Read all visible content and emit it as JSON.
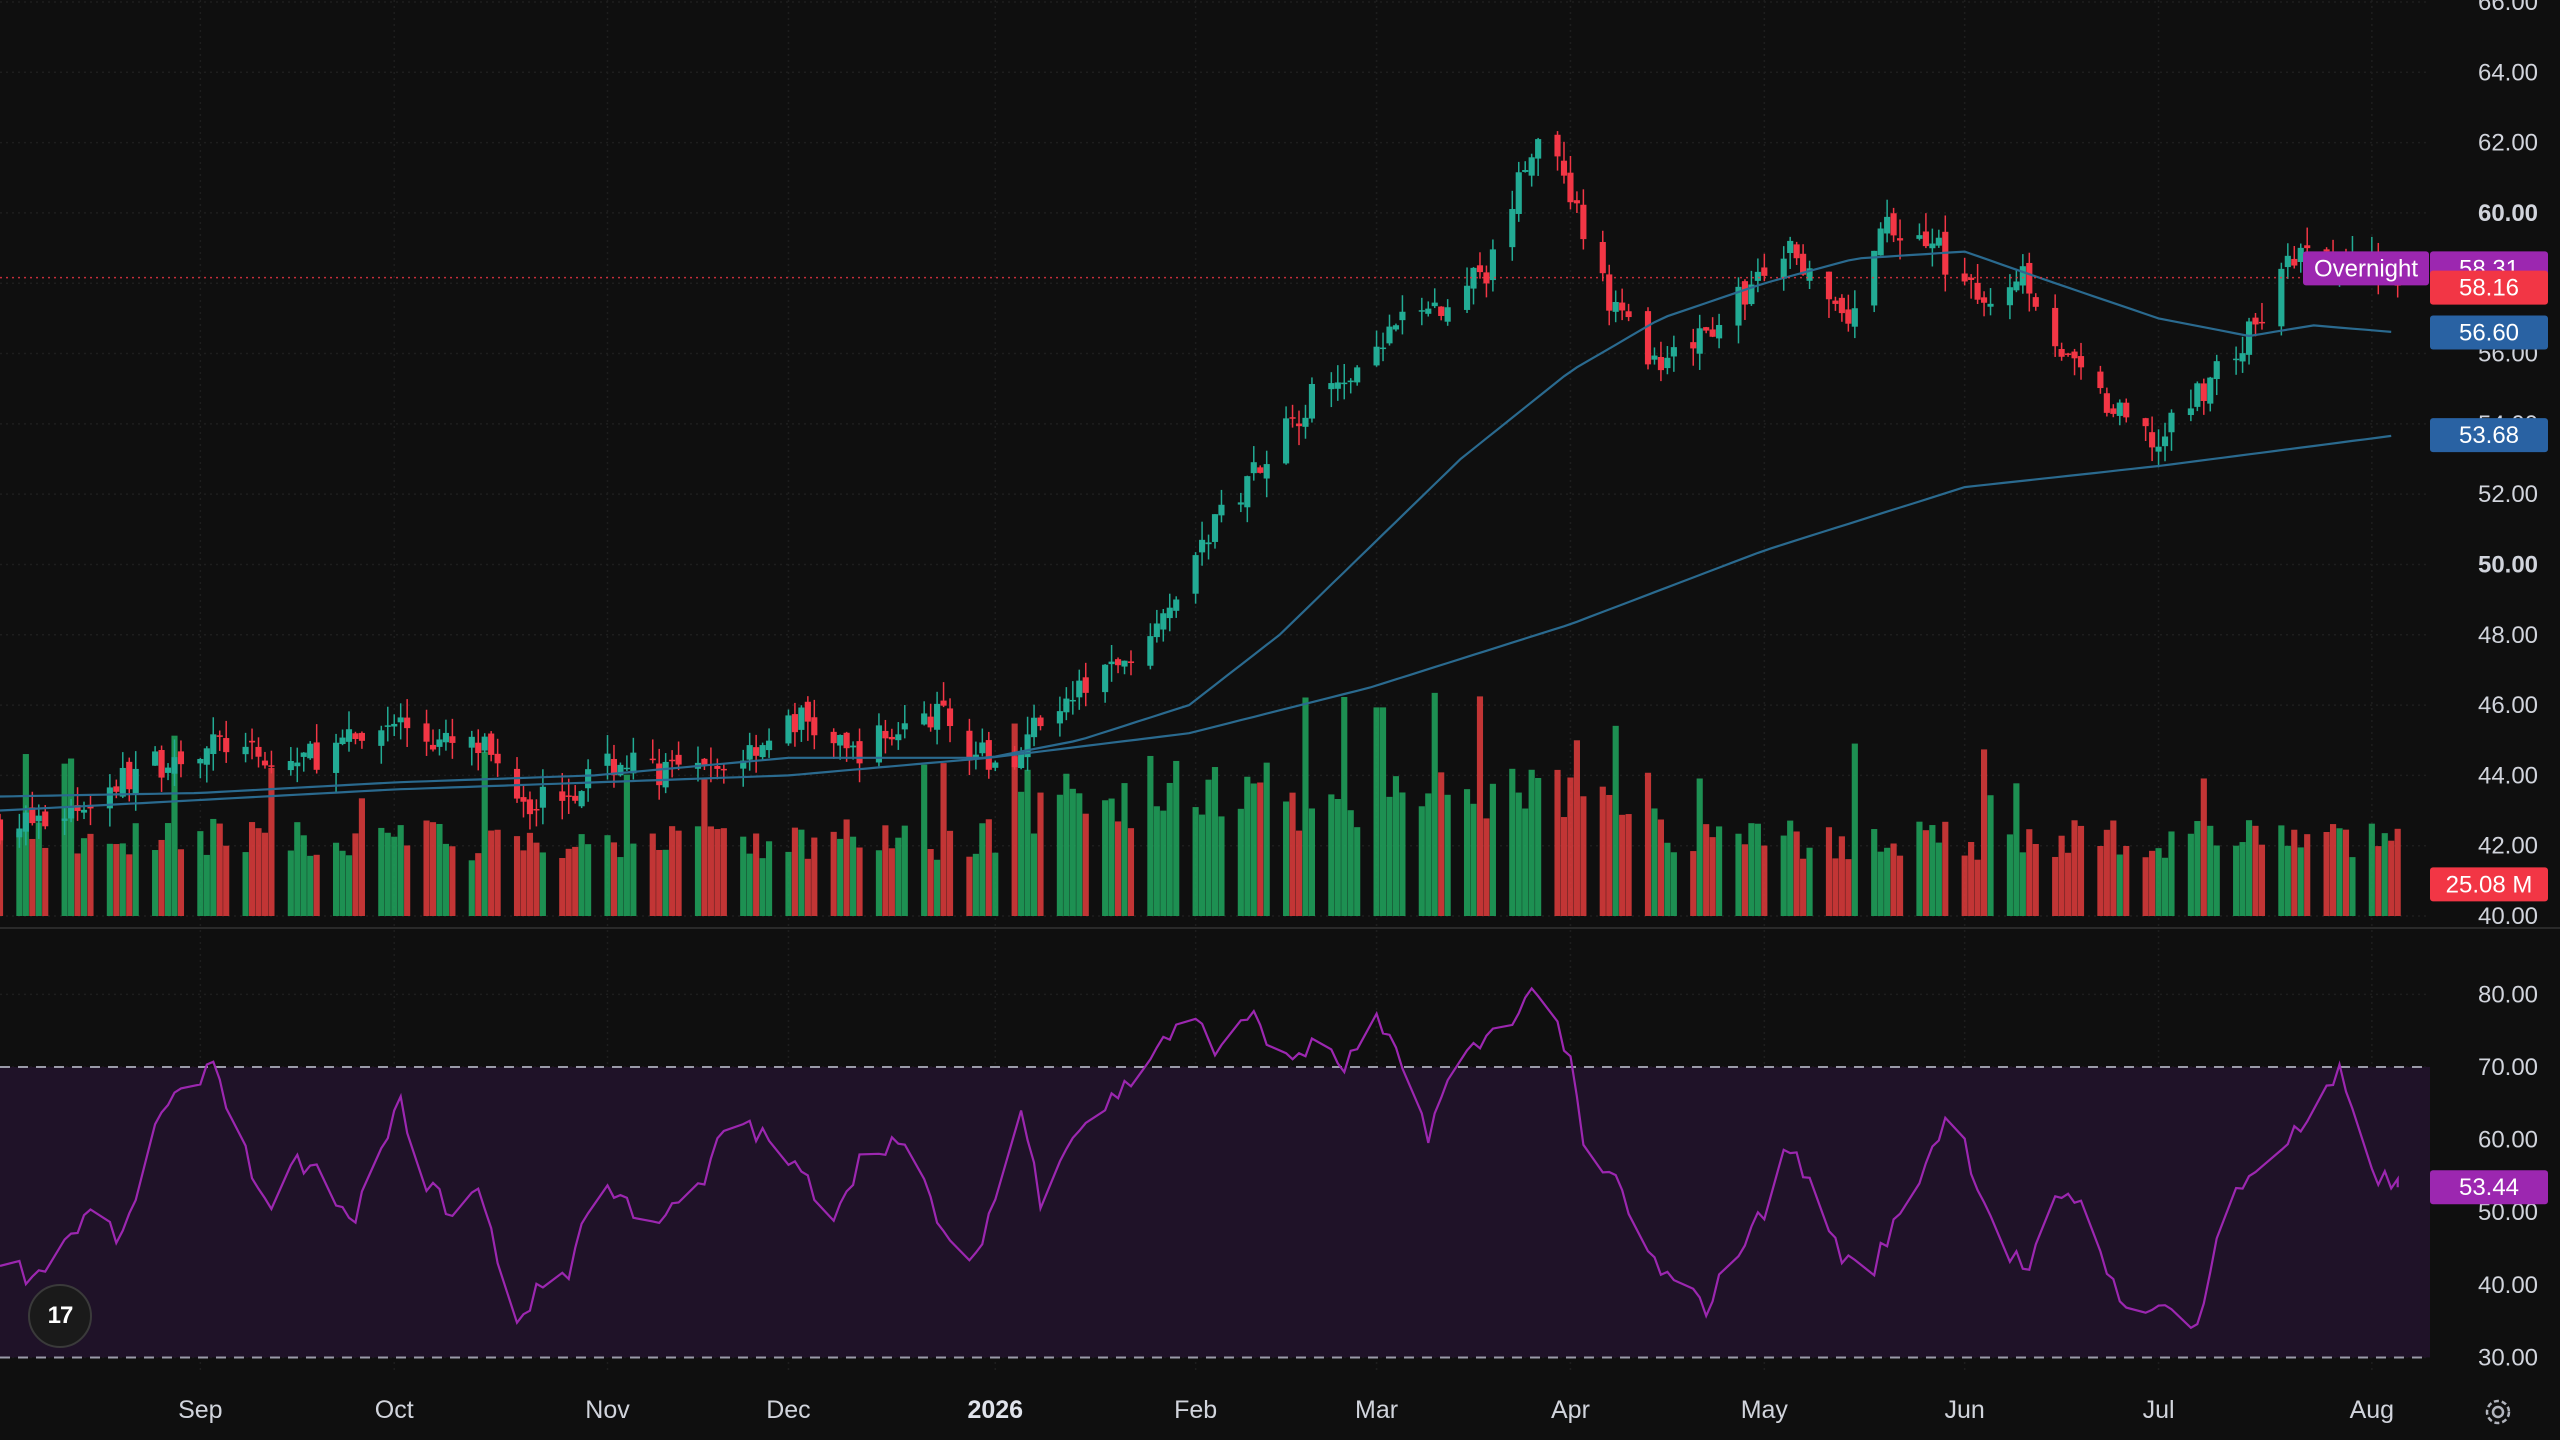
{
  "chart_data": [
    {
      "type": "candlestick",
      "title": "",
      "ylim": [
        40,
        66
      ],
      "y_ticks": [
        "40.00",
        "42.00",
        "44.00",
        "46.00",
        "48.00",
        "50.00",
        "52.00",
        "54.00",
        "56.00",
        "58.00",
        "60.00",
        "62.00",
        "64.00",
        "66.00"
      ],
      "bold_ticks": [
        "50.00",
        "60.00"
      ],
      "x_ticks": [
        {
          "label": "Sep",
          "date": "2025-09-01"
        },
        {
          "label": "Oct",
          "date": "2025-10-01"
        },
        {
          "label": "Nov",
          "date": "2025-11-03"
        },
        {
          "label": "Dec",
          "date": "2025-12-01"
        },
        {
          "label": "2026",
          "date": "2026-01-02",
          "bold": true
        },
        {
          "label": "Feb",
          "date": "2026-02-02"
        },
        {
          "label": "Mar",
          "date": "2026-03-02"
        },
        {
          "label": "Apr",
          "date": "2026-04-01"
        },
        {
          "label": "May",
          "date": "2026-05-01"
        },
        {
          "label": "Jun",
          "date": "2026-06-01"
        },
        {
          "label": "Jul",
          "date": "2026-07-01"
        },
        {
          "label": "Aug",
          "date": "2026-08-03"
        }
      ],
      "close_path": [
        [
          "2025-08-01",
          42.6
        ],
        [
          "2025-08-08",
          42.7
        ],
        [
          "2025-08-15",
          43.3
        ],
        [
          "2025-08-22",
          44.1
        ],
        [
          "2025-08-29",
          44.6
        ],
        [
          "2025-09-05",
          44.9
        ],
        [
          "2025-09-12",
          44.2
        ],
        [
          "2025-09-19",
          44.6
        ],
        [
          "2025-09-26",
          45.0
        ],
        [
          "2025-10-01",
          45.6
        ],
        [
          "2025-10-08",
          44.9
        ],
        [
          "2025-10-15",
          44.7
        ],
        [
          "2025-10-22",
          43.3
        ],
        [
          "2025-10-29",
          43.7
        ],
        [
          "2025-11-05",
          44.4
        ],
        [
          "2025-11-12",
          44.1
        ],
        [
          "2025-11-19",
          44.0
        ],
        [
          "2025-11-26",
          44.9
        ],
        [
          "2025-12-03",
          45.6
        ],
        [
          "2025-12-10",
          44.6
        ],
        [
          "2025-12-17",
          45.2
        ],
        [
          "2025-12-24",
          45.8
        ],
        [
          "2026-01-01",
          44.3
        ],
        [
          "2026-01-06",
          44.4
        ],
        [
          "2026-01-09",
          45.8
        ],
        [
          "2026-01-16",
          46.4
        ],
        [
          "2026-01-23",
          47.6
        ],
        [
          "2026-01-30",
          49.4
        ],
        [
          "2026-02-06",
          51.4
        ],
        [
          "2026-02-13",
          53.3
        ],
        [
          "2026-02-20",
          54.8
        ],
        [
          "2026-02-27",
          55.3
        ],
        [
          "2026-03-06",
          56.9
        ],
        [
          "2026-03-13",
          57.2
        ],
        [
          "2026-03-20",
          58.6
        ],
        [
          "2026-03-27",
          62.5
        ],
        [
          "2026-04-01",
          60.3
        ],
        [
          "2026-04-08",
          57.1
        ],
        [
          "2026-04-15",
          55.4
        ],
        [
          "2026-04-22",
          56.6
        ],
        [
          "2026-04-29",
          57.9
        ],
        [
          "2026-05-06",
          59.0
        ],
        [
          "2026-05-13",
          56.7
        ],
        [
          "2026-05-20",
          59.6
        ],
        [
          "2026-05-27",
          59.2
        ],
        [
          "2026-06-03",
          57.4
        ],
        [
          "2026-06-10",
          58.4
        ],
        [
          "2026-06-17",
          55.7
        ],
        [
          "2026-06-24",
          54.3
        ],
        [
          "2026-07-01",
          53.4
        ],
        [
          "2026-07-08",
          55.1
        ],
        [
          "2026-07-15",
          56.5
        ],
        [
          "2026-07-22",
          58.8
        ],
        [
          "2026-07-29",
          58.4
        ],
        [
          "2026-08-03",
          58.6
        ],
        [
          "2026-08-07",
          58.16
        ]
      ],
      "series": [
        {
          "name": "",
          "color": "#2a6a8f",
          "points": [
            [
              "2025-08-01",
              43.4
            ],
            [
              "2025-09-01",
              43.5
            ],
            [
              "2025-10-01",
              43.8
            ],
            [
              "2025-11-01",
              44.0
            ],
            [
              "2025-12-01",
              44.5
            ],
            [
              "2026-01-01",
              44.5
            ],
            [
              "2026-01-15",
              45.0
            ],
            [
              "2026-02-01",
              46.0
            ],
            [
              "2026-02-15",
              48.0
            ],
            [
              "2026-03-01",
              50.5
            ],
            [
              "2026-03-15",
              53.0
            ],
            [
              "2026-04-01",
              55.5
            ],
            [
              "2026-04-15",
              57.0
            ],
            [
              "2026-05-01",
              58.0
            ],
            [
              "2026-05-15",
              58.7
            ],
            [
              "2026-06-01",
              58.9
            ],
            [
              "2026-06-15",
              58.0
            ],
            [
              "2026-07-01",
              57.0
            ],
            [
              "2026-07-15",
              56.5
            ],
            [
              "2026-07-25",
              56.8
            ],
            [
              "2026-08-07",
              56.6
            ]
          ]
        },
        {
          "name": "",
          "color": "#2a6a8f",
          "points": [
            [
              "2025-08-01",
              43.0
            ],
            [
              "2025-09-01",
              43.3
            ],
            [
              "2025-10-01",
              43.6
            ],
            [
              "2025-11-01",
              43.8
            ],
            [
              "2025-12-01",
              44.0
            ],
            [
              "2026-01-01",
              44.5
            ],
            [
              "2026-02-01",
              45.2
            ],
            [
              "2026-03-01",
              46.5
            ],
            [
              "2026-04-01",
              48.3
            ],
            [
              "2026-05-01",
              50.4
            ],
            [
              "2026-06-01",
              52.2
            ],
            [
              "2026-07-01",
              52.8
            ],
            [
              "2026-08-07",
              53.68
            ]
          ]
        }
      ],
      "volume_scale_max": 65,
      "volume_last": 25.08,
      "volume_unit": "M",
      "price_lines": [
        {
          "label": "Overnight",
          "value": "58.31",
          "price": 58.31,
          "color": "#9c27b0"
        },
        {
          "value": "58.16",
          "price": 58.16,
          "color": "#f23645",
          "dotted": true
        },
        {
          "value": "56.60",
          "price": 56.6,
          "color": "#2962a3"
        },
        {
          "value": "53.68",
          "price": 53.68,
          "color": "#2962a3"
        }
      ],
      "volume_badge": {
        "value": "25.08 M",
        "color": "#f23645"
      },
      "up_color": "#22ab94",
      "down_color": "#f23645"
    },
    {
      "type": "line",
      "title": "",
      "ylim": [
        28,
        85
      ],
      "y_ticks": [
        "30.00",
        "40.00",
        "50.00",
        "60.00",
        "70.00",
        "80.00"
      ],
      "band": [
        30,
        70
      ],
      "color": "#9c27b0",
      "last_value": "53.44",
      "points": [
        [
          "2025-08-01",
          44
        ],
        [
          "2025-08-06",
          41
        ],
        [
          "2025-08-11",
          46
        ],
        [
          "2025-08-15",
          50
        ],
        [
          "2025-08-20",
          46
        ],
        [
          "2025-08-25",
          62
        ],
        [
          "2025-08-29",
          66
        ],
        [
          "2025-09-03",
          71
        ],
        [
          "2025-09-08",
          58
        ],
        [
          "2025-09-12",
          49
        ],
        [
          "2025-09-16",
          57
        ],
        [
          "2025-09-20",
          55
        ],
        [
          "2025-09-24",
          48
        ],
        [
          "2025-09-29",
          58
        ],
        [
          "2025-10-02",
          65
        ],
        [
          "2025-10-06",
          54
        ],
        [
          "2025-10-10",
          50
        ],
        [
          "2025-10-14",
          53
        ],
        [
          "2025-10-20",
          35
        ],
        [
          "2025-10-24",
          40
        ],
        [
          "2025-10-28",
          42
        ],
        [
          "2025-11-01",
          54
        ],
        [
          "2025-11-05",
          52
        ],
        [
          "2025-11-09",
          49
        ],
        [
          "2025-11-13",
          50
        ],
        [
          "2025-11-18",
          54
        ],
        [
          "2025-11-22",
          64
        ],
        [
          "2025-11-26",
          61
        ],
        [
          "2025-11-30",
          58
        ],
        [
          "2025-12-04",
          54
        ],
        [
          "2025-12-08",
          50
        ],
        [
          "2025-12-12",
          57
        ],
        [
          "2025-12-17",
          60
        ],
        [
          "2025-12-21",
          56
        ],
        [
          "2025-12-26",
          45
        ],
        [
          "2025-12-29",
          42
        ],
        [
          "2026-01-02",
          52
        ],
        [
          "2026-01-06",
          64
        ],
        [
          "2026-01-09",
          52
        ],
        [
          "2026-01-13",
          60
        ],
        [
          "2026-01-18",
          64
        ],
        [
          "2026-01-23",
          68
        ],
        [
          "2026-01-28",
          74
        ],
        [
          "2026-02-02",
          76
        ],
        [
          "2026-02-06",
          72
        ],
        [
          "2026-02-11",
          78
        ],
        [
          "2026-02-15",
          70
        ],
        [
          "2026-02-20",
          73
        ],
        [
          "2026-02-25",
          70
        ],
        [
          "2026-03-02",
          76
        ],
        [
          "2026-03-06",
          70
        ],
        [
          "2026-03-10",
          61
        ],
        [
          "2026-03-14",
          70
        ],
        [
          "2026-03-19",
          74
        ],
        [
          "2026-03-24",
          78
        ],
        [
          "2026-03-28",
          82
        ],
        [
          "2026-04-01",
          70
        ],
        [
          "2026-04-04",
          54
        ],
        [
          "2026-04-08",
          55
        ],
        [
          "2026-04-12",
          45
        ],
        [
          "2026-04-17",
          40
        ],
        [
          "2026-04-22",
          37
        ],
        [
          "2026-04-27",
          45
        ],
        [
          "2026-05-01",
          50
        ],
        [
          "2026-05-04",
          60
        ],
        [
          "2026-05-08",
          54
        ],
        [
          "2026-05-13",
          44
        ],
        [
          "2026-05-17",
          41
        ],
        [
          "2026-05-21",
          48
        ],
        [
          "2026-05-25",
          55
        ],
        [
          "2026-05-30",
          65
        ],
        [
          "2026-06-03",
          54
        ],
        [
          "2026-06-07",
          45
        ],
        [
          "2026-06-11",
          42
        ],
        [
          "2026-06-15",
          51
        ],
        [
          "2026-06-19",
          52
        ],
        [
          "2026-06-24",
          40
        ],
        [
          "2026-06-29",
          35
        ],
        [
          "2026-07-03",
          38
        ],
        [
          "2026-07-07",
          34
        ],
        [
          "2026-07-11",
          50
        ],
        [
          "2026-07-16",
          56
        ],
        [
          "2026-07-21",
          60
        ],
        [
          "2026-07-25",
          63
        ],
        [
          "2026-07-29",
          69
        ],
        [
          "2026-08-01",
          60
        ],
        [
          "2026-08-04",
          55
        ],
        [
          "2026-08-07",
          53.44
        ]
      ]
    }
  ],
  "x_range": [
    "2025-08-01",
    "2026-08-12"
  ],
  "brand": {
    "logo_text": "17"
  },
  "settings": {
    "icon": "gear-icon"
  }
}
